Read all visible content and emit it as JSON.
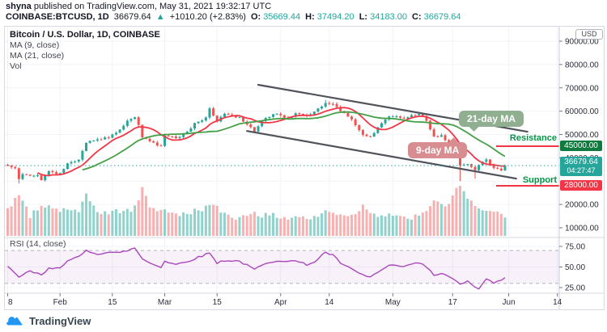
{
  "byline": {
    "author": "shyna",
    "rest": " published on TradingView.com, May 31, 2021 19:32:17 UTC"
  },
  "quote": {
    "symbol": "COINBASE:BTCUSD, 1D",
    "last": "36679.64",
    "arrow": "▲",
    "change": "+1010.20 (+2.83%)",
    "o_label": "O:",
    "o": "35669.44",
    "h_label": "H:",
    "h": "37494.20",
    "l_label": "L:",
    "l": "34183.00",
    "c_label": "C:",
    "c": "36679.64"
  },
  "legend": {
    "title": "Bitcoin / U.S. Dollar, 1D, COINBASE",
    "ma_fast": "MA (9, close)",
    "ma_slow": "MA (21, close)",
    "vol": "Vol"
  },
  "rsi_label": "RSI (14, close)",
  "annotations": {
    "ma_slow_callout": "21-day MA",
    "ma_fast_callout": "9-day MA",
    "resistance": "Resistance",
    "support": "Support"
  },
  "axis": {
    "currency": "USD",
    "last_price": "36679.64",
    "countdown": "04:27:47",
    "resistance_price": "45000.00",
    "support_price": "28000.00"
  },
  "footer": {
    "brand": "TradingView"
  },
  "colors": {
    "up": "#26a69a",
    "down": "#ef5350",
    "vol_up": "rgba(38,166,154,0.5)",
    "vol_down": "rgba(239,83,80,0.45)",
    "ma_fast": "#f23645",
    "ma_slow": "#43a047",
    "rsi_line": "#ab47bc",
    "rsi_band": "rgba(171,71,188,0.08)",
    "rsi_dash": "#b2b5be",
    "trendline": "#50535b",
    "level_line": "#f23645",
    "label_green": "#069447",
    "grid": "#f0f3fa",
    "axis_text": "#2a2e39",
    "badge_last_bg": "#26a69a",
    "badge_resistance_bg": "#0f7a3d",
    "badge_support_bg": "#f23645",
    "callout_slow_bg": "#90ae90",
    "callout_fast_bg": "#d88d90"
  },
  "chart_data": {
    "type": "candlestick",
    "title": "Bitcoin / U.S. Dollar, 1D, COINBASE",
    "symbol": "BTCUSD",
    "exchange": "COINBASE",
    "interval": "1D",
    "start_date": "Jan 18, 2021",
    "end_date": "May 31, 2021",
    "days": 134,
    "price_axis_ticks": [
      90000,
      80000,
      70000,
      60000,
      50000,
      40000,
      20000,
      10000
    ],
    "levels": {
      "resistance": 45000,
      "support": 28000,
      "last_price": 36679.64
    },
    "x_ticks": [
      {
        "d": 0,
        "label": "8"
      },
      {
        "d": 14,
        "label": "Feb"
      },
      {
        "d": 28,
        "label": "15"
      },
      {
        "d": 42,
        "label": "Mar"
      },
      {
        "d": 56,
        "label": "15"
      },
      {
        "d": 73,
        "label": "Apr"
      },
      {
        "d": 86,
        "label": "14"
      },
      {
        "d": 103,
        "label": "May"
      },
      {
        "d": 119,
        "label": "17"
      },
      {
        "d": 134,
        "label": "Jun"
      },
      {
        "d": 147,
        "label": "14"
      }
    ],
    "close_anchors_usd_k": [
      [
        0,
        36.6
      ],
      [
        1,
        36.0
      ],
      [
        2,
        35.5
      ],
      [
        3,
        30.9
      ],
      [
        4,
        33.0
      ],
      [
        6,
        32.3
      ],
      [
        8,
        32.5
      ],
      [
        9,
        30.4
      ],
      [
        11,
        34.3
      ],
      [
        13,
        33.1
      ],
      [
        14,
        33.5
      ],
      [
        16,
        37.6
      ],
      [
        19,
        39.2
      ],
      [
        21,
        46.4
      ],
      [
        24,
        47.9
      ],
      [
        27,
        48.6
      ],
      [
        30,
        52.1
      ],
      [
        32,
        55.9
      ],
      [
        34,
        57.4
      ],
      [
        35,
        54.1
      ],
      [
        36,
        48.8
      ],
      [
        38,
        47.1
      ],
      [
        41,
        45.1
      ],
      [
        42,
        49.6
      ],
      [
        45,
        48.4
      ],
      [
        48,
        51.2
      ],
      [
        50,
        54.9
      ],
      [
        53,
        57.3
      ],
      [
        54,
        61.2
      ],
      [
        56,
        55.6
      ],
      [
        58,
        58.9
      ],
      [
        60,
        58.1
      ],
      [
        62,
        57.4
      ],
      [
        64,
        54.3
      ],
      [
        66,
        51.3
      ],
      [
        68,
        55.8
      ],
      [
        71,
        58.7
      ],
      [
        72,
        58.9
      ],
      [
        75,
        57.1
      ],
      [
        77,
        59.1
      ],
      [
        80,
        58.1
      ],
      [
        82,
        59.8
      ],
      [
        85,
        63.5
      ],
      [
        87,
        63.1
      ],
      [
        89,
        60.0
      ],
      [
        92,
        56.5
      ],
      [
        95,
        49.9
      ],
      [
        97,
        49.1
      ],
      [
        100,
        54.8
      ],
      [
        102,
        57.7
      ],
      [
        105,
        57.2
      ],
      [
        107,
        57.4
      ],
      [
        110,
        58.8
      ],
      [
        112,
        55.9
      ],
      [
        114,
        49.2
      ],
      [
        116,
        49.7
      ],
      [
        118,
        46.4
      ],
      [
        119,
        43.5
      ],
      [
        121,
        36.7
      ],
      [
        123,
        37.3
      ],
      [
        125,
        34.7
      ],
      [
        127,
        38.3
      ],
      [
        128,
        39.3
      ],
      [
        130,
        35.7
      ],
      [
        132,
        34.6
      ],
      [
        133,
        36.7
      ]
    ],
    "wick_overrides_k": {
      "3": {
        "low": 29.0
      },
      "54": {
        "high": 61.8
      },
      "85": {
        "high": 64.8
      },
      "121": {
        "low": 30.0
      },
      "125": {
        "low": 31.1
      }
    },
    "volume_anchors": [
      [
        0,
        0.5
      ],
      [
        3,
        0.85
      ],
      [
        6,
        0.4
      ],
      [
        9,
        0.55
      ],
      [
        11,
        0.6
      ],
      [
        14,
        0.5
      ],
      [
        16,
        0.55
      ],
      [
        19,
        0.45
      ],
      [
        21,
        0.8
      ],
      [
        24,
        0.5
      ],
      [
        27,
        0.45
      ],
      [
        30,
        0.5
      ],
      [
        32,
        0.5
      ],
      [
        34,
        0.55
      ],
      [
        36,
        0.95
      ],
      [
        38,
        0.6
      ],
      [
        41,
        0.5
      ],
      [
        42,
        0.55
      ],
      [
        45,
        0.4
      ],
      [
        48,
        0.45
      ],
      [
        50,
        0.5
      ],
      [
        54,
        0.6
      ],
      [
        56,
        0.55
      ],
      [
        58,
        0.45
      ],
      [
        62,
        0.35
      ],
      [
        66,
        0.5
      ],
      [
        68,
        0.4
      ],
      [
        72,
        0.4
      ],
      [
        75,
        0.35
      ],
      [
        77,
        0.4
      ],
      [
        80,
        0.35
      ],
      [
        82,
        0.35
      ],
      [
        85,
        0.5
      ],
      [
        87,
        0.45
      ],
      [
        89,
        0.45
      ],
      [
        92,
        0.4
      ],
      [
        95,
        0.6
      ],
      [
        97,
        0.5
      ],
      [
        100,
        0.4
      ],
      [
        102,
        0.45
      ],
      [
        105,
        0.35
      ],
      [
        107,
        0.35
      ],
      [
        110,
        0.4
      ],
      [
        112,
        0.45
      ],
      [
        114,
        0.75
      ],
      [
        116,
        0.6
      ],
      [
        118,
        0.65
      ],
      [
        119,
        0.8
      ],
      [
        121,
        1.0
      ],
      [
        123,
        0.7
      ],
      [
        125,
        0.65
      ],
      [
        127,
        0.55
      ],
      [
        128,
        0.5
      ],
      [
        130,
        0.45
      ],
      [
        132,
        0.4
      ],
      [
        133,
        0.35
      ]
    ],
    "ma": {
      "fast": 9,
      "slow": 21
    },
    "rsi": {
      "period": 14,
      "ticks": [
        75,
        50,
        25
      ],
      "band": [
        30,
        70
      ],
      "anchors": [
        [
          0,
          50
        ],
        [
          3,
          38
        ],
        [
          6,
          45
        ],
        [
          9,
          40
        ],
        [
          11,
          48
        ],
        [
          14,
          50
        ],
        [
          16,
          57
        ],
        [
          19,
          62
        ],
        [
          21,
          70
        ],
        [
          24,
          66
        ],
        [
          27,
          68
        ],
        [
          30,
          67
        ],
        [
          32,
          70
        ],
        [
          34,
          73
        ],
        [
          36,
          60
        ],
        [
          38,
          55
        ],
        [
          41,
          50
        ],
        [
          42,
          57
        ],
        [
          45,
          53
        ],
        [
          48,
          57
        ],
        [
          50,
          60
        ],
        [
          54,
          67
        ],
        [
          56,
          55
        ],
        [
          58,
          58
        ],
        [
          62,
          57
        ],
        [
          66,
          47
        ],
        [
          68,
          52
        ],
        [
          72,
          58
        ],
        [
          77,
          57
        ],
        [
          80,
          53
        ],
        [
          82,
          56
        ],
        [
          85,
          68
        ],
        [
          87,
          64
        ],
        [
          89,
          55
        ],
        [
          92,
          47
        ],
        [
          95,
          40
        ],
        [
          97,
          38
        ],
        [
          100,
          46
        ],
        [
          102,
          52
        ],
        [
          105,
          50
        ],
        [
          107,
          52
        ],
        [
          110,
          55
        ],
        [
          112,
          50
        ],
        [
          114,
          40
        ],
        [
          116,
          42
        ],
        [
          118,
          38
        ],
        [
          119,
          35
        ],
        [
          121,
          30
        ],
        [
          123,
          32
        ],
        [
          125,
          26
        ],
        [
          126,
          23
        ],
        [
          128,
          35
        ],
        [
          130,
          31
        ],
        [
          132,
          33
        ],
        [
          133,
          37
        ]
      ]
    },
    "trendlines": [
      {
        "from_d": 67,
        "from_p": 71300,
        "to_d": 139,
        "to_p": 51200
      },
      {
        "from_d": 64,
        "from_p": 51500,
        "to_d": 136,
        "to_p": 31100
      }
    ]
  }
}
